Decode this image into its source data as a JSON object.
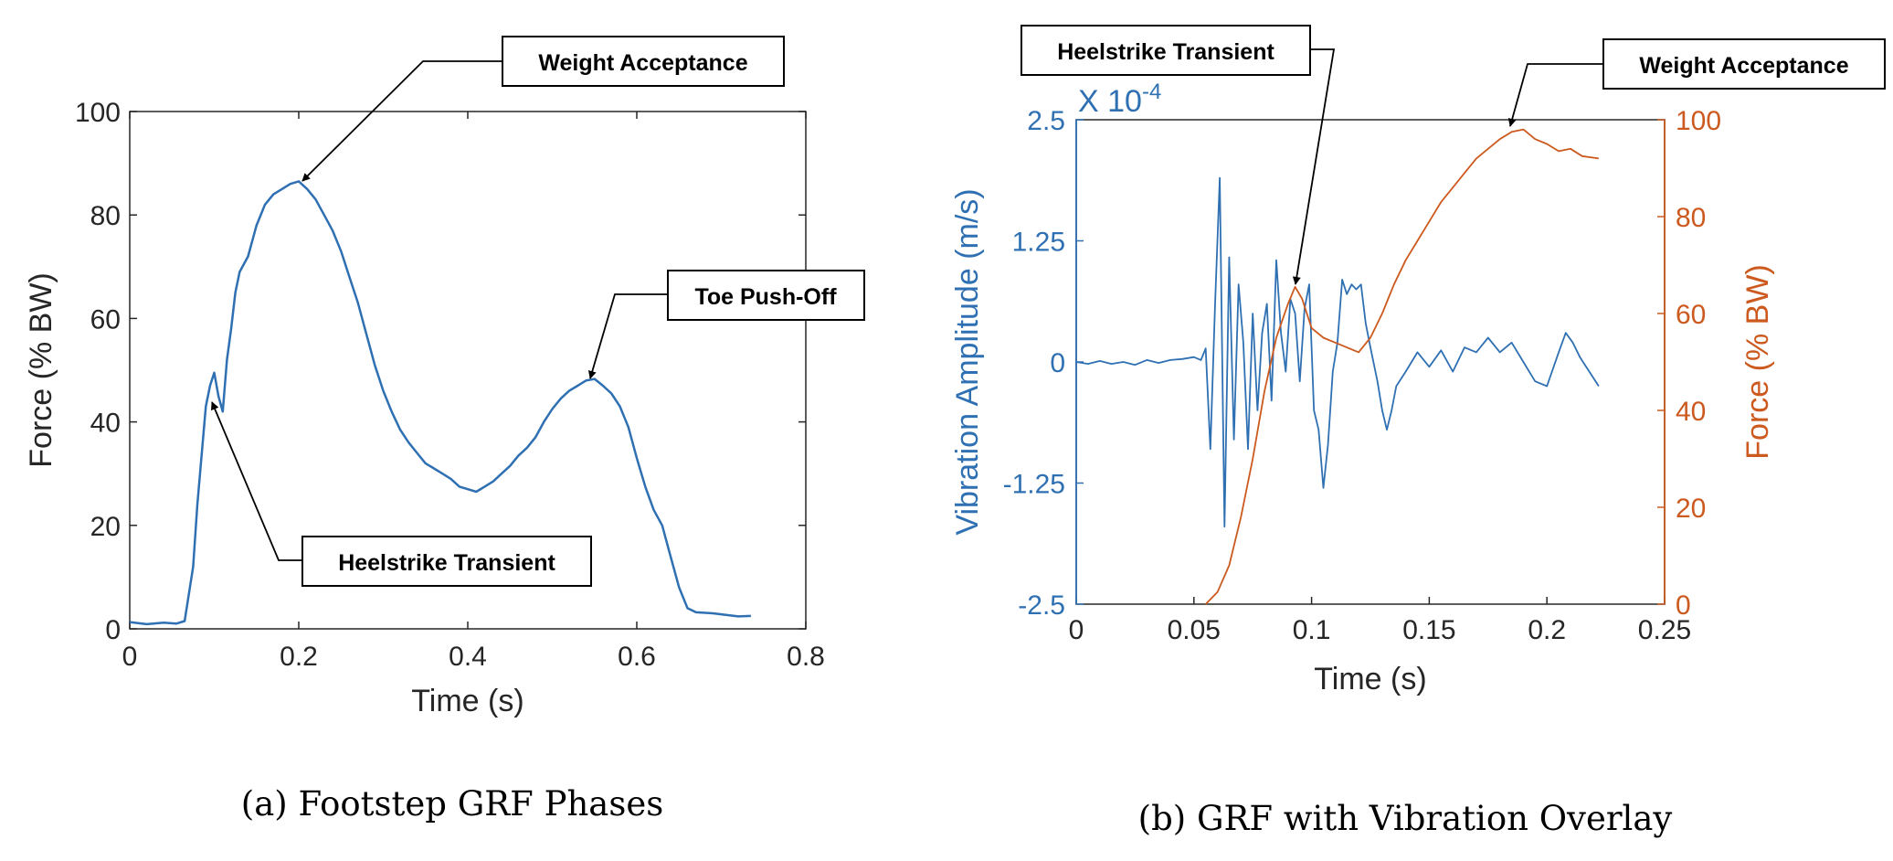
{
  "figure": {
    "caption_a": "(a) Footstep GRF Phases",
    "caption_b": "(b) GRF with Vibration Overlay"
  },
  "colors": {
    "blue": "#2f70b3",
    "orange": "#cc5a1f",
    "axis": "#262626"
  },
  "chart_data": [
    {
      "type": "line",
      "title": "",
      "xlabel": "Time (s)",
      "ylabel": "Force (% BW)",
      "xlim": [
        0,
        0.8
      ],
      "ylim": [
        0,
        100
      ],
      "x_ticks": [
        "0",
        "0.2",
        "0.4",
        "0.6",
        "0.8"
      ],
      "y_ticks": [
        "0",
        "20",
        "40",
        "60",
        "80",
        "100"
      ],
      "grid": false,
      "series": [
        {
          "color": "#2f70b3",
          "points": [
            [
              0.0,
              1.3
            ],
            [
              0.02,
              0.9
            ],
            [
              0.04,
              1.2
            ],
            [
              0.055,
              1.0
            ],
            [
              0.065,
              1.5
            ],
            [
              0.075,
              12
            ],
            [
              0.08,
              24
            ],
            [
              0.09,
              43
            ],
            [
              0.095,
              47
            ],
            [
              0.1,
              49.5
            ],
            [
              0.105,
              45
            ],
            [
              0.11,
              42
            ],
            [
              0.115,
              52
            ],
            [
              0.12,
              58
            ],
            [
              0.125,
              65
            ],
            [
              0.13,
              69
            ],
            [
              0.14,
              72
            ],
            [
              0.15,
              78
            ],
            [
              0.16,
              82
            ],
            [
              0.17,
              84
            ],
            [
              0.18,
              85
            ],
            [
              0.19,
              86
            ],
            [
              0.2,
              86.5
            ],
            [
              0.21,
              85
            ],
            [
              0.22,
              83
            ],
            [
              0.23,
              80
            ],
            [
              0.24,
              77
            ],
            [
              0.25,
              73
            ],
            [
              0.26,
              68
            ],
            [
              0.27,
              63
            ],
            [
              0.28,
              57
            ],
            [
              0.29,
              51
            ],
            [
              0.3,
              46
            ],
            [
              0.31,
              42
            ],
            [
              0.32,
              38.5
            ],
            [
              0.33,
              36
            ],
            [
              0.34,
              34
            ],
            [
              0.35,
              32
            ],
            [
              0.36,
              31
            ],
            [
              0.37,
              30
            ],
            [
              0.38,
              29
            ],
            [
              0.39,
              27.5
            ],
            [
              0.4,
              27
            ],
            [
              0.41,
              26.5
            ],
            [
              0.42,
              27.5
            ],
            [
              0.43,
              28.5
            ],
            [
              0.44,
              30
            ],
            [
              0.45,
              31.5
            ],
            [
              0.46,
              33.5
            ],
            [
              0.47,
              35
            ],
            [
              0.48,
              37
            ],
            [
              0.49,
              40
            ],
            [
              0.5,
              42.5
            ],
            [
              0.51,
              44.5
            ],
            [
              0.52,
              46
            ],
            [
              0.53,
              47
            ],
            [
              0.54,
              48
            ],
            [
              0.55,
              48.3
            ],
            [
              0.56,
              47
            ],
            [
              0.57,
              45.5
            ],
            [
              0.58,
              43
            ],
            [
              0.59,
              39
            ],
            [
              0.6,
              33
            ],
            [
              0.61,
              27.5
            ],
            [
              0.62,
              23
            ],
            [
              0.63,
              20
            ],
            [
              0.64,
              14
            ],
            [
              0.65,
              8
            ],
            [
              0.66,
              4
            ],
            [
              0.67,
              3.2
            ],
            [
              0.69,
              3.0
            ],
            [
              0.71,
              2.6
            ],
            [
              0.72,
              2.4
            ],
            [
              0.735,
              2.5
            ]
          ]
        }
      ],
      "annotations": [
        {
          "text": "Weight Acceptance",
          "target": [
            0.2,
            86.5
          ]
        },
        {
          "text": "Toe Push-Off",
          "target": [
            0.55,
            48.3
          ]
        },
        {
          "text": "Heelstrike Transient",
          "target": [
            0.103,
            44.5
          ]
        }
      ]
    },
    {
      "type": "line",
      "title": "",
      "xlabel": "Time (s)",
      "ylabel": "Vibration Amplitude (m/s)",
      "ylabel_right": "Force (% BW)",
      "exponent_label": "X 10",
      "exponent_power": "-4",
      "xlim": [
        0,
        0.25
      ],
      "ylim": [
        -2.5,
        2.5
      ],
      "ylim_right": [
        0,
        100
      ],
      "x_ticks": [
        "0",
        "0.05",
        "0.1",
        "0.15",
        "0.2",
        "0.25"
      ],
      "y_ticks": [
        "-2.5",
        "-1.25",
        "0",
        "1.25",
        "2.5"
      ],
      "y_ticks_right": [
        "0",
        "20",
        "40",
        "60",
        "80",
        "100"
      ],
      "grid": false,
      "series": [
        {
          "axis": "left",
          "color": "#2f70b3",
          "points": [
            [
              0.0,
              0.0
            ],
            [
              0.005,
              -0.02
            ],
            [
              0.01,
              0.01
            ],
            [
              0.015,
              -0.02
            ],
            [
              0.02,
              0.0
            ],
            [
              0.025,
              -0.03
            ],
            [
              0.03,
              0.02
            ],
            [
              0.035,
              -0.01
            ],
            [
              0.04,
              0.02
            ],
            [
              0.045,
              0.03
            ],
            [
              0.05,
              0.05
            ],
            [
              0.053,
              0.02
            ],
            [
              0.055,
              0.14
            ],
            [
              0.057,
              -0.9
            ],
            [
              0.059,
              0.6
            ],
            [
              0.061,
              1.9
            ],
            [
              0.063,
              -1.7
            ],
            [
              0.065,
              1.08
            ],
            [
              0.067,
              -0.8
            ],
            [
              0.069,
              0.8
            ],
            [
              0.071,
              0.2
            ],
            [
              0.073,
              -0.9
            ],
            [
              0.075,
              0.5
            ],
            [
              0.077,
              -0.5
            ],
            [
              0.079,
              0.3
            ],
            [
              0.081,
              0.6
            ],
            [
              0.083,
              -0.4
            ],
            [
              0.085,
              1.05
            ],
            [
              0.087,
              0.3
            ],
            [
              0.089,
              -0.1
            ],
            [
              0.091,
              0.65
            ],
            [
              0.093,
              0.5
            ],
            [
              0.095,
              -0.2
            ],
            [
              0.097,
              0.55
            ],
            [
              0.099,
              0.8
            ],
            [
              0.101,
              -0.5
            ],
            [
              0.103,
              -0.7
            ],
            [
              0.105,
              -1.3
            ],
            [
              0.107,
              -0.85
            ],
            [
              0.109,
              -0.1
            ],
            [
              0.111,
              0.2
            ],
            [
              0.113,
              0.85
            ],
            [
              0.115,
              0.7
            ],
            [
              0.117,
              0.8
            ],
            [
              0.119,
              0.75
            ],
            [
              0.121,
              0.8
            ],
            [
              0.123,
              0.4
            ],
            [
              0.125,
              0.15
            ],
            [
              0.128,
              -0.2
            ],
            [
              0.13,
              -0.5
            ],
            [
              0.132,
              -0.7
            ],
            [
              0.134,
              -0.5
            ],
            [
              0.136,
              -0.25
            ],
            [
              0.14,
              -0.1
            ],
            [
              0.145,
              0.1
            ],
            [
              0.15,
              -0.05
            ],
            [
              0.155,
              0.12
            ],
            [
              0.16,
              -0.1
            ],
            [
              0.165,
              0.15
            ],
            [
              0.17,
              0.1
            ],
            [
              0.175,
              0.25
            ],
            [
              0.18,
              0.1
            ],
            [
              0.185,
              0.2
            ],
            [
              0.19,
              0.0
            ],
            [
              0.195,
              -0.2
            ],
            [
              0.2,
              -0.25
            ],
            [
              0.205,
              0.1
            ],
            [
              0.208,
              0.3
            ],
            [
              0.211,
              0.2
            ],
            [
              0.214,
              0.05
            ],
            [
              0.218,
              -0.1
            ],
            [
              0.222,
              -0.25
            ]
          ]
        },
        {
          "axis": "right",
          "color": "#cc5a1f",
          "points": [
            [
              0.055,
              0.0
            ],
            [
              0.06,
              2.5
            ],
            [
              0.065,
              8
            ],
            [
              0.07,
              18
            ],
            [
              0.075,
              30
            ],
            [
              0.08,
              44
            ],
            [
              0.085,
              55
            ],
            [
              0.09,
              62
            ],
            [
              0.093,
              65.5
            ],
            [
              0.096,
              63
            ],
            [
              0.1,
              57
            ],
            [
              0.105,
              55
            ],
            [
              0.11,
              54
            ],
            [
              0.115,
              53
            ],
            [
              0.12,
              52
            ],
            [
              0.125,
              55
            ],
            [
              0.13,
              60
            ],
            [
              0.135,
              66
            ],
            [
              0.14,
              71
            ],
            [
              0.145,
              75
            ],
            [
              0.15,
              79
            ],
            [
              0.155,
              83
            ],
            [
              0.16,
              86
            ],
            [
              0.165,
              89
            ],
            [
              0.17,
              92
            ],
            [
              0.175,
              94
            ],
            [
              0.18,
              96
            ],
            [
              0.185,
              97.5
            ],
            [
              0.19,
              98
            ],
            [
              0.195,
              96
            ],
            [
              0.2,
              95
            ],
            [
              0.205,
              93.5
            ],
            [
              0.21,
              94
            ],
            [
              0.215,
              92.5
            ],
            [
              0.222,
              92
            ]
          ]
        }
      ],
      "annotations": [
        {
          "text": "Heelstrike Transient",
          "target_right_axis": [
            0.093,
            65.5
          ]
        },
        {
          "text": "Weight Acceptance",
          "target_right_axis": [
            0.187,
            98
          ]
        }
      ]
    }
  ]
}
